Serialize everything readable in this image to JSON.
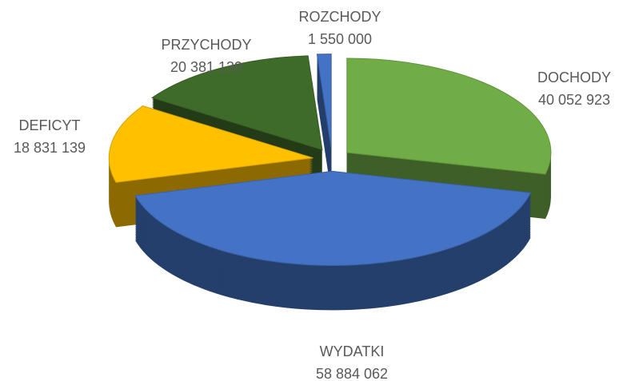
{
  "chart_data": {
    "type": "pie",
    "categories": [
      "DOCHODY",
      "WYDATKI",
      "DEFICYT",
      "PRZYCHODY",
      "ROZCHODY"
    ],
    "values": [
      40052923,
      58884062,
      18831139,
      20381139,
      1550000
    ],
    "value_labels": [
      "40 052 923",
      "58 884 062",
      "18 831 139",
      "20 381 139",
      "1 550 000"
    ],
    "colors": [
      "#70ad47",
      "#4472c4",
      "#ffc000",
      "#3f6b2a",
      "#4472c4"
    ]
  }
}
